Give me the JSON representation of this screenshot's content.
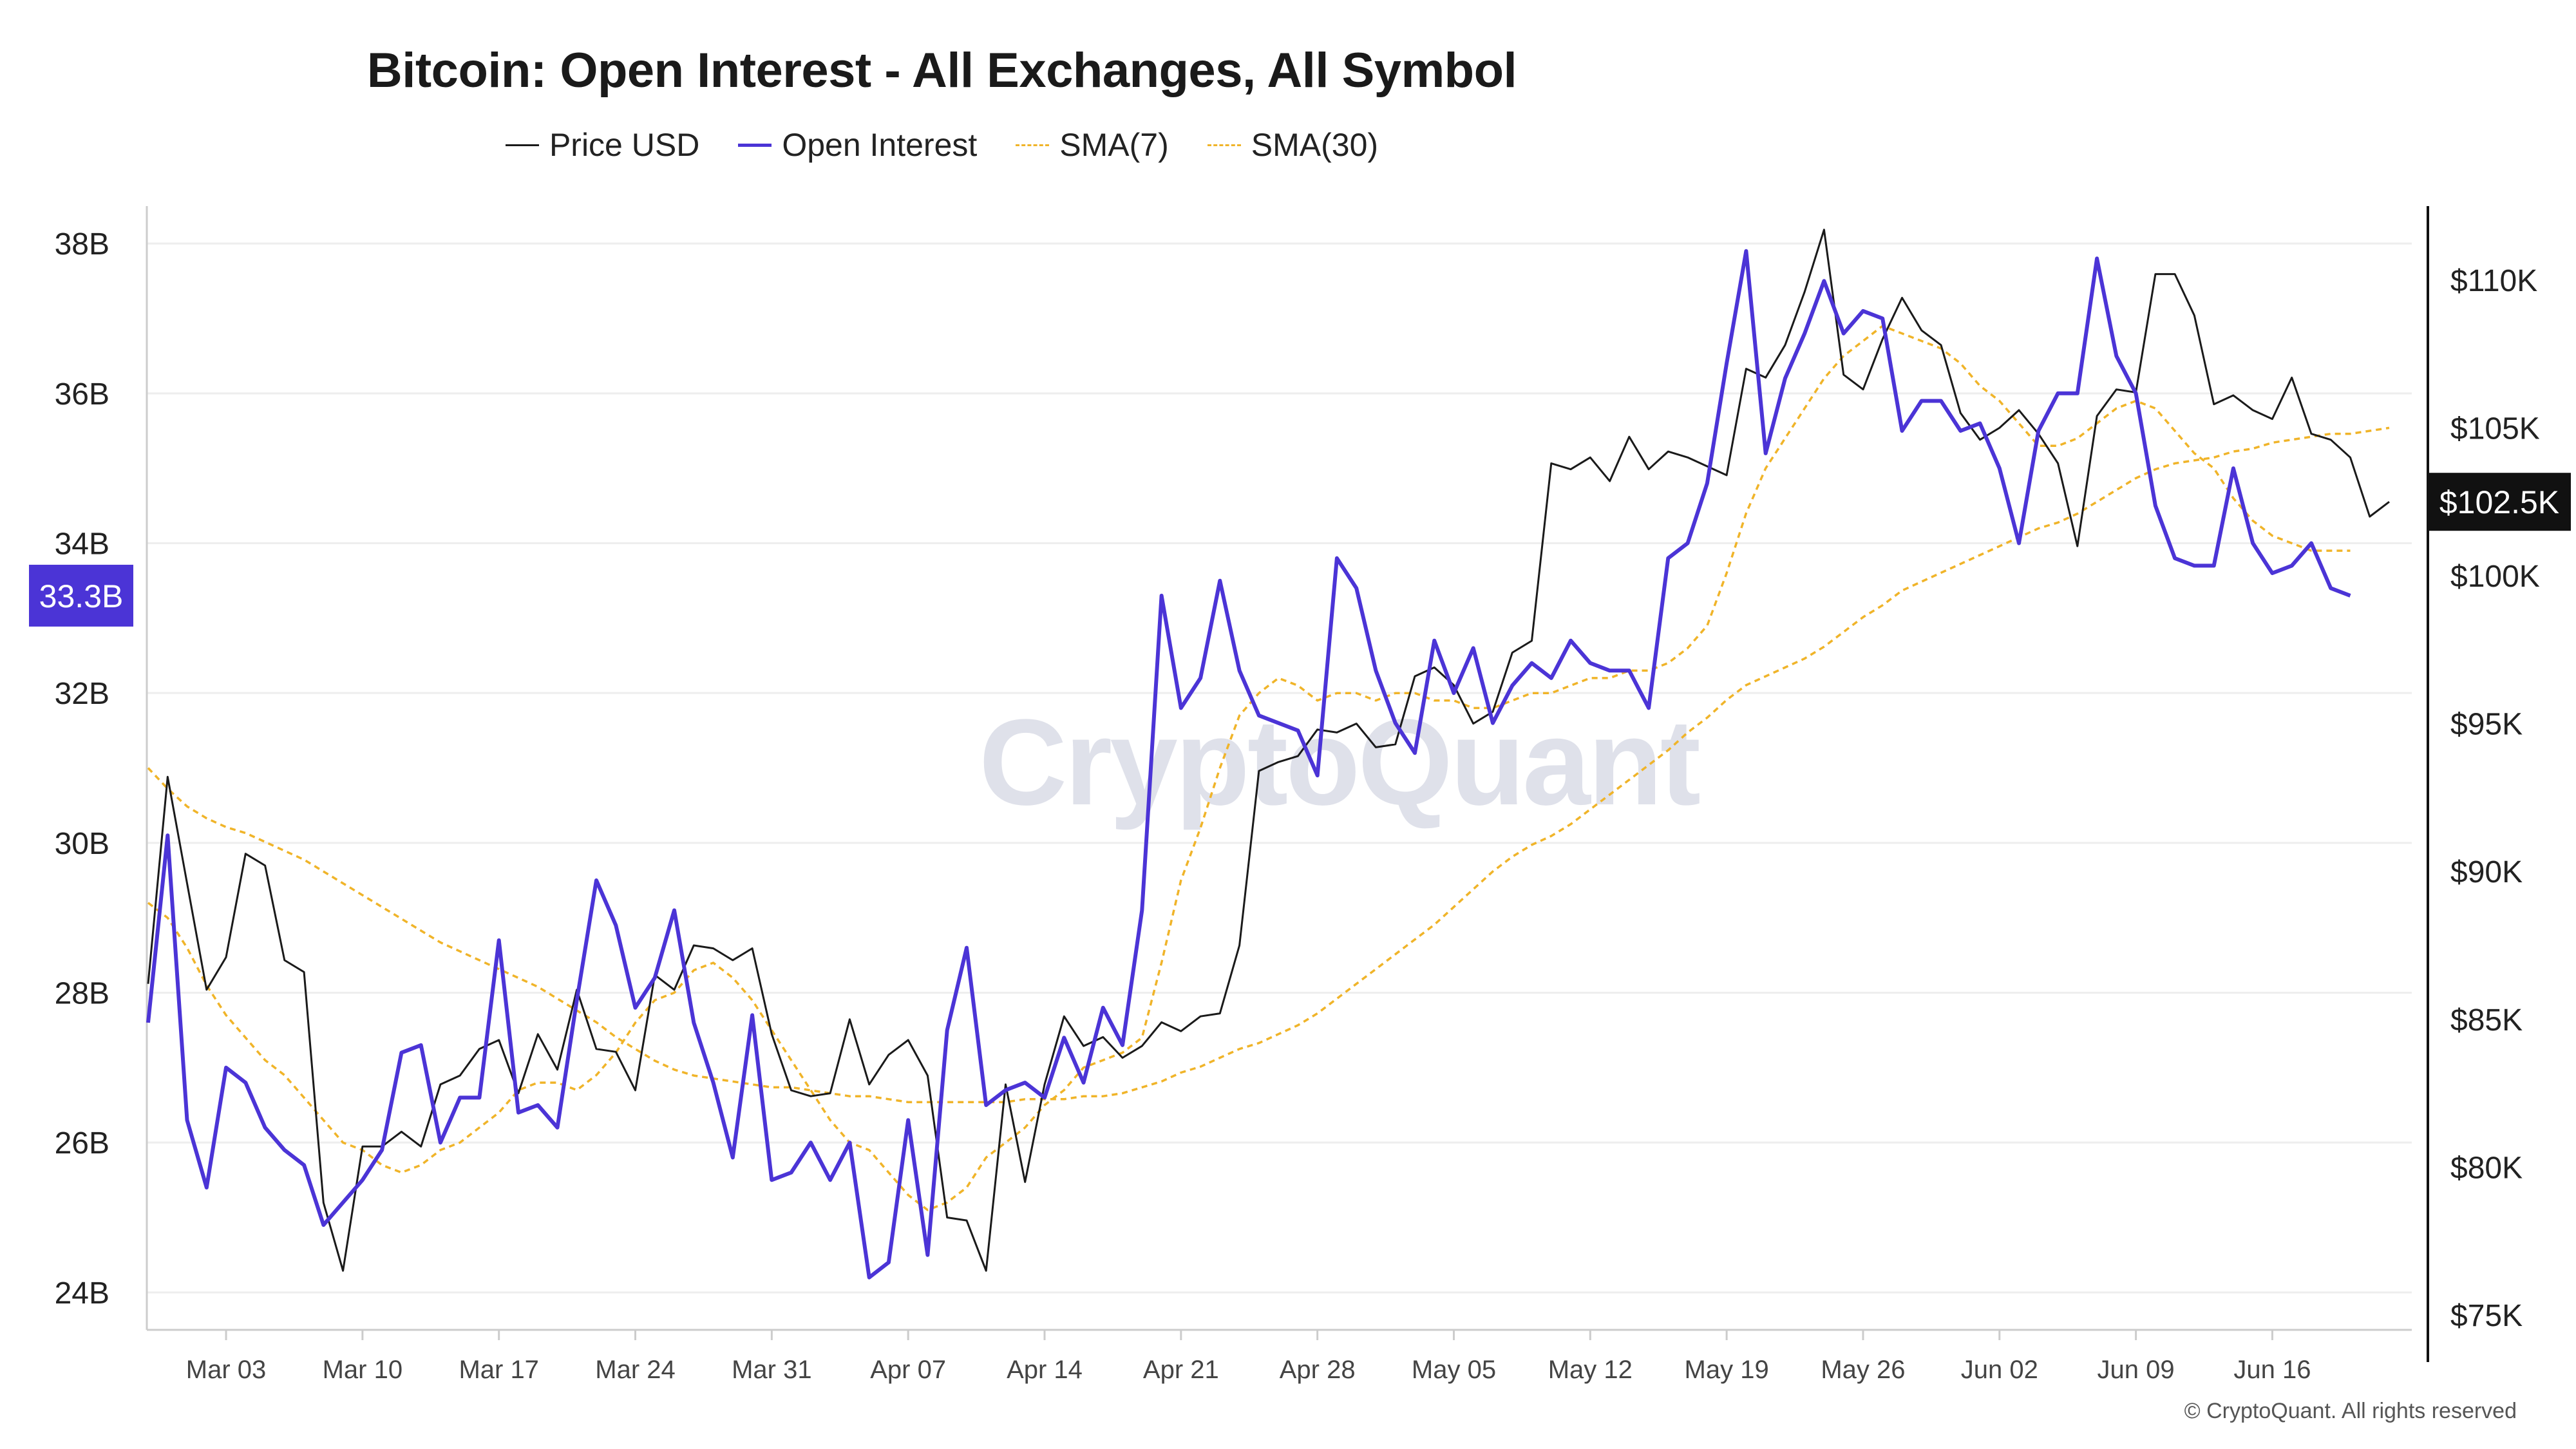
{
  "chart_data": {
    "type": "line",
    "title": "Bitcoin: Open Interest - All Exchanges, All Symbol",
    "xlabel": "",
    "ylabel_left": "",
    "ylabel_right": "",
    "left_axis": {
      "ticks": [
        "24B",
        "26B",
        "28B",
        "30B",
        "32B",
        "34B",
        "36B",
        "38B"
      ],
      "tick_values": [
        24,
        26,
        28,
        30,
        32,
        34,
        36,
        38
      ],
      "range": [
        23.5,
        38.5
      ],
      "unit": "B"
    },
    "right_axis": {
      "ticks": [
        "$75K",
        "$80K",
        "$85K",
        "$90K",
        "$95K",
        "$100K",
        "$105K",
        "$110K"
      ],
      "tick_values": [
        75,
        80,
        85,
        90,
        95,
        100,
        105,
        110
      ],
      "range": [
        74.5,
        112.5
      ],
      "unit": "K USD"
    },
    "x_ticks": [
      "Mar 03",
      "Mar 10",
      "Mar 17",
      "Mar 24",
      "Mar 31",
      "Apr 07",
      "Apr 14",
      "Apr 21",
      "Apr 28",
      "May 05",
      "May 12",
      "May 19",
      "May 26",
      "Jun 02",
      "Jun 09",
      "Jun 16"
    ],
    "current_oi_label": "33.3B",
    "current_price_label": "$102.5K",
    "legend": [
      {
        "name": "Price USD",
        "color": "#1a1a1a",
        "style": "solid"
      },
      {
        "name": "Open Interest",
        "color": "#4b34d6",
        "style": "solid"
      },
      {
        "name": "SMA(7)",
        "color": "#f0b429",
        "style": "dashed"
      },
      {
        "name": "SMA(30)",
        "color": "#f0b429",
        "style": "dashed"
      }
    ],
    "grid": true,
    "series": [
      {
        "name": "Price USD",
        "axis": "right",
        "color": "#1a1a1a",
        "values": [
          86.2,
          93.2,
          89.6,
          86.0,
          87.1,
          90.6,
          90.2,
          87.0,
          86.6,
          78.8,
          76.5,
          80.7,
          80.7,
          81.2,
          80.7,
          82.8,
          83.1,
          84.0,
          84.3,
          82.5,
          84.5,
          83.3,
          86.0,
          84.0,
          83.9,
          82.6,
          86.5,
          86.0,
          87.5,
          87.4,
          87.0,
          87.4,
          84.5,
          82.6,
          82.4,
          82.5,
          85.0,
          82.8,
          83.8,
          84.3,
          83.1,
          78.3,
          78.2,
          76.5,
          82.8,
          79.5,
          82.8,
          85.1,
          84.1,
          84.4,
          83.7,
          84.1,
          84.9,
          84.6,
          85.1,
          85.2,
          87.5,
          93.4,
          93.7,
          93.9,
          94.8,
          94.7,
          95.0,
          94.2,
          94.3,
          96.6,
          96.9,
          96.3,
          95.0,
          95.4,
          97.4,
          97.8,
          103.8,
          103.6,
          104.0,
          103.2,
          104.7,
          103.6,
          104.2,
          104.0,
          103.7,
          103.4,
          107.0,
          106.7,
          107.8,
          109.6,
          111.7,
          106.8,
          106.3,
          108.0,
          109.4,
          108.3,
          107.8,
          105.5,
          104.6,
          105.0,
          105.6,
          104.8,
          103.8,
          101.0,
          105.4,
          106.3,
          106.2,
          110.2,
          110.2,
          108.8,
          105.8,
          106.1,
          105.6,
          105.3,
          106.7,
          104.8,
          104.6,
          104.0,
          102.0,
          102.5
        ]
      },
      {
        "name": "Open Interest",
        "axis": "left",
        "color": "#4b34d6",
        "values": [
          27.6,
          30.1,
          26.3,
          25.4,
          27.0,
          26.8,
          26.2,
          25.9,
          25.7,
          24.9,
          25.2,
          25.5,
          25.9,
          27.2,
          27.3,
          26.0,
          26.6,
          26.6,
          28.7,
          26.4,
          26.5,
          26.2,
          27.9,
          29.5,
          28.9,
          27.8,
          28.2,
          29.1,
          27.6,
          26.8,
          25.8,
          27.7,
          25.5,
          25.6,
          26.0,
          25.5,
          26.0,
          24.2,
          24.4,
          26.3,
          24.5,
          27.5,
          28.6,
          26.5,
          26.7,
          26.8,
          26.6,
          27.4,
          26.8,
          27.8,
          27.3,
          29.1,
          33.3,
          31.8,
          32.2,
          33.5,
          32.3,
          31.7,
          31.6,
          31.5,
          30.9,
          33.8,
          33.4,
          32.3,
          31.6,
          31.2,
          32.7,
          32.0,
          32.6,
          31.6,
          32.1,
          32.4,
          32.2,
          32.7,
          32.4,
          32.3,
          32.3,
          31.8,
          33.8,
          34.0,
          34.8,
          36.4,
          37.9,
          35.2,
          36.2,
          36.8,
          37.5,
          36.8,
          37.1,
          37.0,
          35.5,
          35.9,
          35.9,
          35.5,
          35.6,
          35.0,
          34.0,
          35.5,
          36.0,
          36.0,
          37.8,
          36.5,
          36.0,
          34.5,
          33.8,
          33.7,
          33.7,
          35.0,
          34.0,
          33.6,
          33.7,
          34.0,
          33.4,
          33.3
        ]
      },
      {
        "name": "SMA(7)",
        "axis": "left",
        "color": "#f0b429",
        "values": [
          29.2,
          29.0,
          28.6,
          28.1,
          27.7,
          27.4,
          27.1,
          26.9,
          26.6,
          26.3,
          26.0,
          25.9,
          25.7,
          25.6,
          25.7,
          25.9,
          26.0,
          26.2,
          26.4,
          26.7,
          26.8,
          26.8,
          26.7,
          26.9,
          27.2,
          27.6,
          27.9,
          28.0,
          28.3,
          28.4,
          28.2,
          27.9,
          27.5,
          27.1,
          26.7,
          26.3,
          26.0,
          25.9,
          25.6,
          25.3,
          25.1,
          25.2,
          25.4,
          25.8,
          26.0,
          26.2,
          26.5,
          26.7,
          27.0,
          27.1,
          27.2,
          27.4,
          28.4,
          29.5,
          30.2,
          31.0,
          31.7,
          32.0,
          32.2,
          32.1,
          31.9,
          32.0,
          32.0,
          31.9,
          32.0,
          32.0,
          31.9,
          31.9,
          31.8,
          31.8,
          31.9,
          32.0,
          32.0,
          32.1,
          32.2,
          32.2,
          32.3,
          32.3,
          32.4,
          32.6,
          32.9,
          33.6,
          34.4,
          35.0,
          35.4,
          35.8,
          36.2,
          36.5,
          36.7,
          36.9,
          36.8,
          36.7,
          36.6,
          36.4,
          36.1,
          35.9,
          35.6,
          35.3,
          35.3,
          35.4,
          35.6,
          35.8,
          35.9,
          35.8,
          35.5,
          35.2,
          35.0,
          34.6,
          34.3,
          34.1,
          34.0,
          33.9,
          33.9,
          33.9
        ]
      },
      {
        "name": "SMA(30)",
        "axis": "right",
        "color": "#f0b429",
        "values": [
          93.5,
          92.8,
          92.2,
          91.8,
          91.5,
          91.3,
          91.0,
          90.7,
          90.4,
          90.0,
          89.6,
          89.2,
          88.8,
          88.4,
          88.0,
          87.6,
          87.3,
          87.0,
          86.7,
          86.4,
          86.1,
          85.7,
          85.3,
          84.9,
          84.4,
          84.0,
          83.6,
          83.3,
          83.1,
          83.0,
          82.9,
          82.8,
          82.7,
          82.7,
          82.6,
          82.5,
          82.4,
          82.4,
          82.3,
          82.2,
          82.2,
          82.2,
          82.2,
          82.2,
          82.2,
          82.3,
          82.3,
          82.3,
          82.4,
          82.4,
          82.5,
          82.7,
          82.9,
          83.2,
          83.4,
          83.7,
          84.0,
          84.2,
          84.5,
          84.8,
          85.2,
          85.7,
          86.2,
          86.7,
          87.2,
          87.7,
          88.2,
          88.8,
          89.4,
          90.0,
          90.5,
          90.9,
          91.2,
          91.6,
          92.1,
          92.6,
          93.1,
          93.6,
          94.1,
          94.7,
          95.2,
          95.8,
          96.3,
          96.6,
          96.9,
          97.2,
          97.6,
          98.1,
          98.6,
          99.0,
          99.5,
          99.8,
          100.1,
          100.4,
          100.7,
          101.0,
          101.3,
          101.6,
          101.8,
          102.1,
          102.5,
          102.9,
          103.3,
          103.6,
          103.8,
          103.9,
          104.0,
          104.2,
          104.3,
          104.5,
          104.6,
          104.7,
          104.8,
          104.8,
          104.9,
          105.0
        ]
      }
    ]
  },
  "watermark": "CryptoQuant",
  "copyright": "© CryptoQuant. All rights reserved"
}
